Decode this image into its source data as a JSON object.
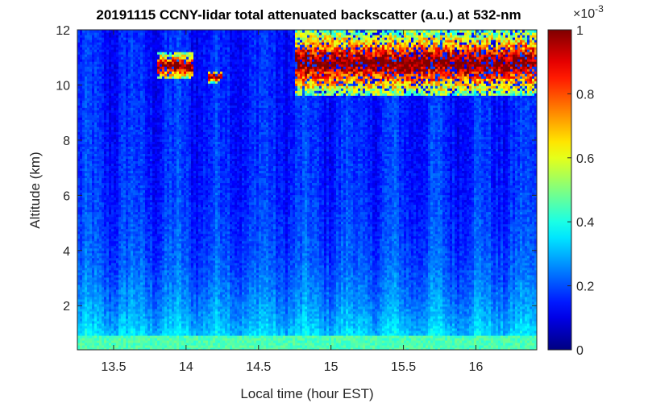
{
  "chart_data": {
    "type": "heatmap",
    "title": "20191115 CCNY-lidar total attenuated backscatter (a.u.) at 532-nm",
    "xlabel": "Local time (hour EST)",
    "ylabel": "Altitude (km)",
    "xlim": [
      13.25,
      16.42
    ],
    "ylim": [
      0.4,
      12
    ],
    "xticks": [
      13.5,
      14,
      14.5,
      15,
      15.5,
      16
    ],
    "xtick_labels": [
      "13.5",
      "14",
      "14.5",
      "15",
      "15.5",
      "16"
    ],
    "yticks": [
      2,
      4,
      6,
      8,
      10,
      12
    ],
    "ytick_labels": [
      "2",
      "4",
      "6",
      "8",
      "10",
      "12"
    ],
    "colorbar": {
      "colormap": "jet",
      "clim": [
        0,
        1
      ],
      "ticks": [
        0,
        0.2,
        0.4,
        0.6,
        0.8,
        1
      ],
      "tick_labels": [
        "0",
        "0.2",
        "0.4",
        "0.6",
        "0.8",
        "1"
      ],
      "multiplier_base": "×10",
      "multiplier_exponent": "-3"
    },
    "features": {
      "boundary_layer_top_km": 0.95,
      "boundary_layer_value": 0.45,
      "free_troposphere_value": 0.15,
      "cirrus_clouds": [
        {
          "t_start": 13.8,
          "t_end": 14.05,
          "alt_min_km": 10.2,
          "alt_max_km": 11.2
        },
        {
          "t_start": 14.15,
          "t_end": 14.25,
          "alt_min_km": 10.1,
          "alt_max_km": 10.5
        },
        {
          "t_start": 14.75,
          "t_end": 16.42,
          "alt_min_km": 9.6,
          "alt_max_km": 12.0
        }
      ]
    }
  }
}
